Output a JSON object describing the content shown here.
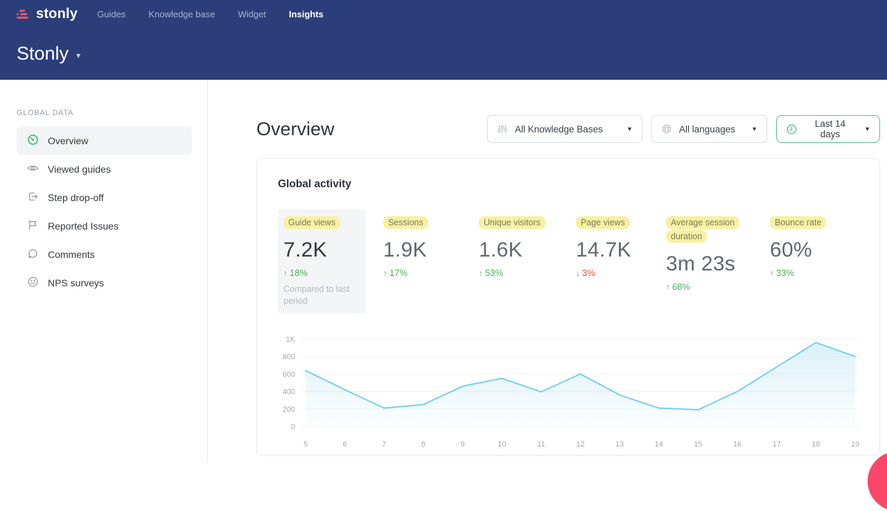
{
  "topnav": {
    "logo_text": "stonly",
    "items": [
      {
        "label": "Guides",
        "active": false
      },
      {
        "label": "Knowledge base",
        "active": false
      },
      {
        "label": "Widget",
        "active": false
      },
      {
        "label": "Insights",
        "active": true
      }
    ]
  },
  "header": {
    "workspace_title": "Stonly"
  },
  "sidebar": {
    "section_label": "GLOBAL DATA",
    "items": [
      {
        "label": "Overview",
        "icon": "gauge-icon",
        "active": true
      },
      {
        "label": "Viewed guides",
        "icon": "eye-icon",
        "active": false
      },
      {
        "label": "Step drop-off",
        "icon": "step-exit-icon",
        "active": false
      },
      {
        "label": "Reported Issues",
        "icon": "flag-icon",
        "active": false
      },
      {
        "label": "Comments",
        "icon": "comment-icon",
        "active": false
      },
      {
        "label": "NPS surveys",
        "icon": "smiley-icon",
        "active": false
      }
    ]
  },
  "main": {
    "page_title": "Overview",
    "filters": [
      {
        "label": "All Knowledge Bases",
        "icon": "sliders-icon",
        "accent": false
      },
      {
        "label": "All languages",
        "icon": "globe-icon",
        "accent": false
      },
      {
        "label": "Last 14 days",
        "icon": "clock-icon",
        "accent": true
      }
    ],
    "card": {
      "title": "Global activity",
      "metrics": [
        {
          "label": "Guide views",
          "value": "7.2K",
          "arrow": "↑",
          "delta": "18%",
          "direction": "up",
          "note": "Compared to last period",
          "selected": true
        },
        {
          "label": "Sessions",
          "value": "1.9K",
          "arrow": "↑",
          "delta": "17%",
          "direction": "up"
        },
        {
          "label": "Unique visitors",
          "value": "1.6K",
          "arrow": "↑",
          "delta": "53%",
          "direction": "up"
        },
        {
          "label": "Page views",
          "value": "14.7K",
          "arrow": "↓",
          "delta": "3%",
          "direction": "down"
        },
        {
          "label": "Average session duration",
          "value": "3m 23s",
          "arrow": "↑",
          "delta": "68%",
          "direction": "up"
        },
        {
          "label": "Bounce rate",
          "value": "60%",
          "arrow": "↑",
          "delta": "33%",
          "direction": "up"
        }
      ]
    }
  },
  "chart_data": {
    "type": "area",
    "title": "Global activity",
    "series_name": "Guide views",
    "x": [
      5,
      6,
      7,
      8,
      9,
      10,
      11,
      12,
      13,
      14,
      15,
      16,
      17,
      18,
      19
    ],
    "values": [
      640,
      420,
      210,
      250,
      460,
      550,
      395,
      600,
      360,
      210,
      190,
      400,
      680,
      960,
      800
    ],
    "ylim": [
      0,
      1000
    ],
    "yticks": [
      0,
      200,
      400,
      600,
      800,
      1000
    ],
    "ytick_labels": [
      "0",
      "200",
      "400",
      "600",
      "800",
      "1K"
    ],
    "grid": true,
    "legend": "none",
    "line_color": "#74d0ee",
    "fill_color": "#bfe6f5",
    "grid_color": "#eef1f4",
    "tick_color": "#a4aab0"
  },
  "colors": {
    "header_bg": "#2b3e79",
    "logo_pink": "#f4526a",
    "accent_green": "#4fc68e",
    "highlight_yellow": "#f7f1a0",
    "delta_up": "#4bb257",
    "delta_down": "#f4483c",
    "chat_bubble": "#fa4769"
  }
}
